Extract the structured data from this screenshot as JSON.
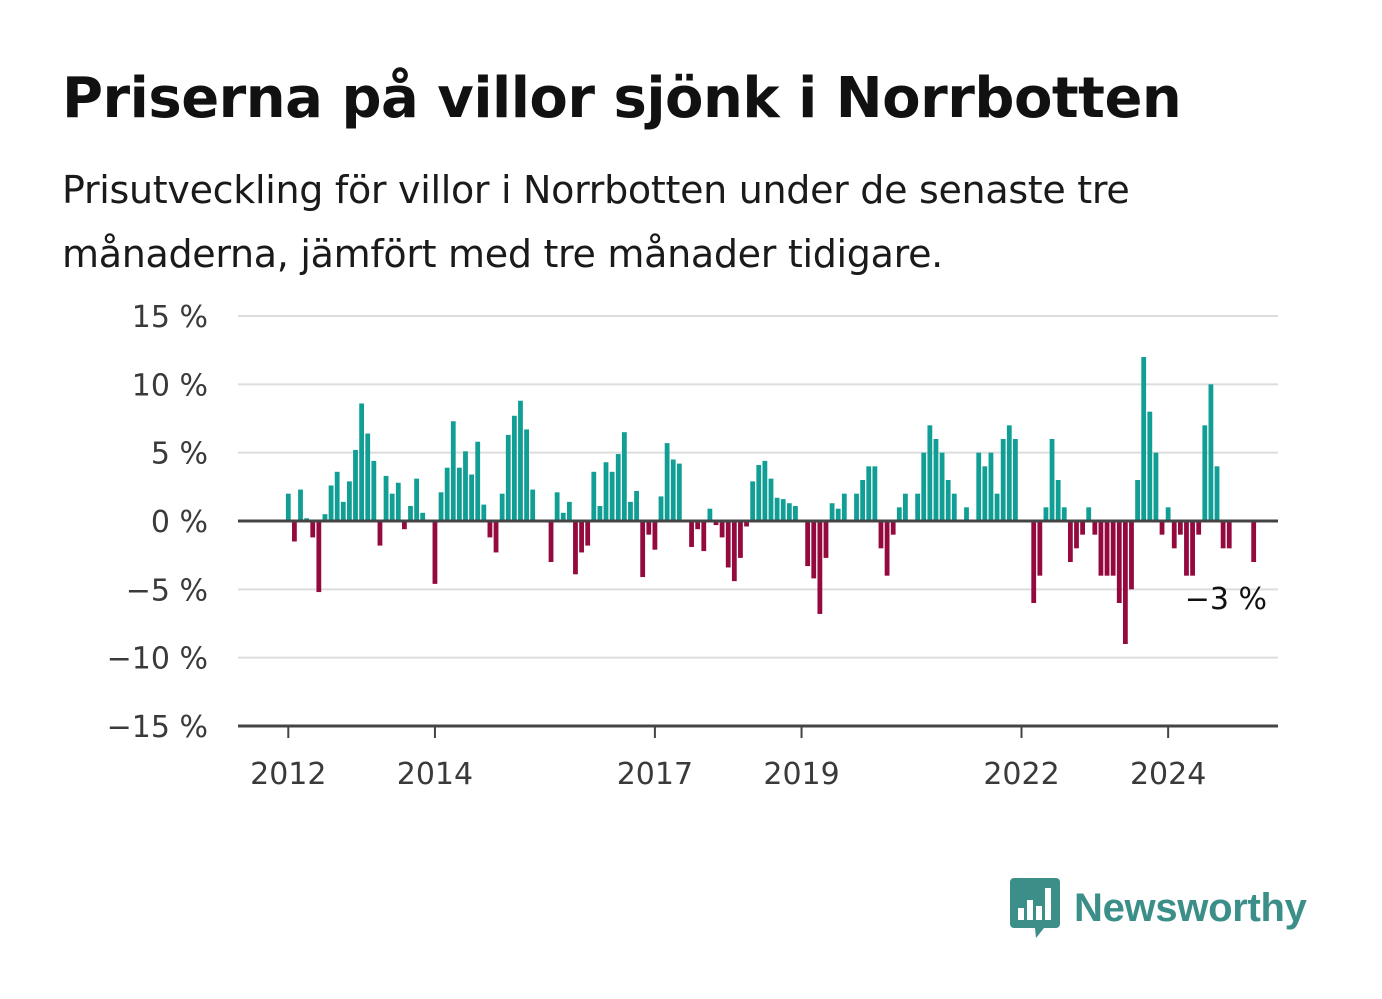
{
  "title": "Priserna på villor sjönk i Norrbotten",
  "subtitle": "Prisutveckling för villor i Norrbotten under de senaste tre månaderna, jämfört med tre månader tidigare.",
  "brand": {
    "name": "Newsworthy",
    "color": "#3b8f88",
    "icon": "bar-chart-speech-bubble-icon"
  },
  "colors": {
    "positive": "#119e94",
    "negative": "#940a3f",
    "grid": "#dddddd",
    "axis": "#444444"
  },
  "chart_data": {
    "type": "bar",
    "x_start": "2012-01",
    "x_interval": "month",
    "ylim": [
      -15,
      15
    ],
    "y_ticks": [
      15,
      10,
      5,
      0,
      -5,
      -10,
      -15
    ],
    "y_tick_labels": [
      "15 %",
      "10 %",
      "5 %",
      "0 %",
      "−5 %",
      "−10 %",
      "−15 %"
    ],
    "x_ticks": [
      "2012",
      "2014",
      "2017",
      "2019",
      "2022",
      "2024"
    ],
    "grid": true,
    "end_label": "−3 %",
    "values": [
      2,
      -1.5,
      2.3,
      0.2,
      -1.2,
      -5.2,
      0.5,
      2.6,
      3.6,
      1.4,
      2.9,
      5.2,
      8.6,
      6.4,
      4.4,
      -1.8,
      3.3,
      2,
      2.8,
      -0.6,
      1.1,
      3.1,
      0.6,
      0,
      -4.6,
      2.1,
      3.9,
      7.3,
      3.9,
      5.1,
      3.4,
      5.8,
      1.2,
      -1.2,
      -2.3,
      2,
      6.3,
      7.7,
      8.8,
      6.7,
      2.3,
      0,
      0,
      -3,
      2.1,
      0.6,
      1.4,
      -3.9,
      -2.3,
      -1.8,
      3.6,
      1.1,
      4.3,
      3.6,
      4.9,
      6.5,
      1.4,
      2.2,
      -4.1,
      -1,
      -2.1,
      1.8,
      5.7,
      4.5,
      4.2,
      0,
      -1.9,
      -0.6,
      -2.2,
      0.9,
      -0.3,
      -1.2,
      -3.4,
      -4.4,
      -2.7,
      -0.4,
      2.9,
      4.1,
      4.4,
      3.1,
      1.7,
      1.6,
      1.3,
      1.1,
      0,
      -3.3,
      -4.2,
      -6.8,
      -2.7,
      1.3,
      0.9,
      2,
      0,
      2,
      3,
      4,
      4,
      -2,
      -4,
      -1,
      1,
      2,
      0,
      2,
      5,
      7,
      6,
      5,
      3,
      2,
      0,
      1,
      0,
      5,
      4,
      5,
      2,
      6,
      7,
      6,
      0,
      0,
      -6,
      -4,
      1,
      6,
      3,
      1,
      -3,
      -2,
      -1,
      1,
      -1,
      -4,
      -4,
      -4,
      -6,
      -9,
      -5,
      3,
      12,
      8,
      5,
      -1,
      1,
      -2,
      -1,
      -4,
      -4,
      -1,
      7,
      10,
      4,
      -2,
      -2,
      0,
      0,
      0,
      -3
    ]
  }
}
